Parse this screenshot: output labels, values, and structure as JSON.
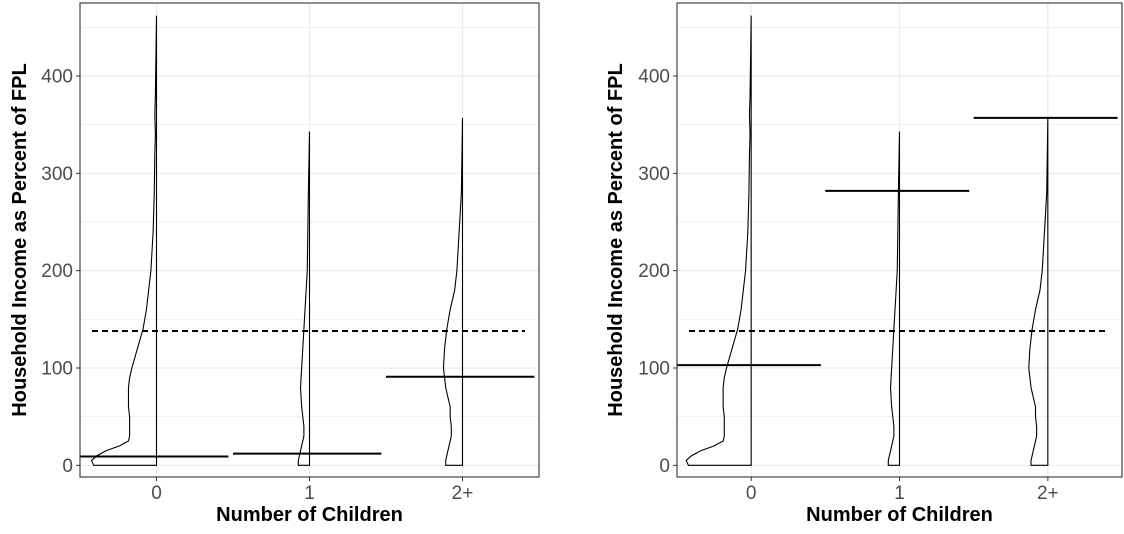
{
  "chart_data": [
    {
      "type": "violin",
      "xlabel": "Number of Children",
      "ylabel": "Household Income as Percent of FPL",
      "categories": [
        "0",
        "1",
        "2+"
      ],
      "ylim": [
        -12,
        475
      ],
      "yticks": [
        0,
        100,
        200,
        300,
        400
      ],
      "grid": true,
      "reference_line": {
        "y": 138,
        "style": "dashed"
      },
      "groups": [
        {
          "category": "0",
          "max": 462,
          "mean_line": 9,
          "density": [
            [
              0,
              0.56
            ],
            [
              5,
              0.58
            ],
            [
              10,
              0.53
            ],
            [
              15,
              0.45
            ],
            [
              20,
              0.33
            ],
            [
              25,
              0.25
            ],
            [
              30,
              0.24
            ],
            [
              40,
              0.24
            ],
            [
              50,
              0.24
            ],
            [
              60,
              0.25
            ],
            [
              70,
              0.25
            ],
            [
              80,
              0.25
            ],
            [
              90,
              0.24
            ],
            [
              100,
              0.22
            ],
            [
              120,
              0.17
            ],
            [
              140,
              0.12
            ],
            [
              160,
              0.09
            ],
            [
              180,
              0.07
            ],
            [
              200,
              0.05
            ],
            [
              240,
              0.03
            ],
            [
              280,
              0.02
            ],
            [
              320,
              0.015
            ],
            [
              340,
              0.01
            ],
            [
              360,
              0.015
            ],
            [
              380,
              0.01
            ],
            [
              420,
              0.005
            ],
            [
              462,
              0
            ]
          ]
        },
        {
          "category": "1",
          "max": 343,
          "mean_line": 12,
          "density": [
            [
              0,
              0.1
            ],
            [
              5,
              0.1
            ],
            [
              10,
              0.09
            ],
            [
              20,
              0.07
            ],
            [
              30,
              0.05
            ],
            [
              40,
              0.05
            ],
            [
              50,
              0.06
            ],
            [
              60,
              0.07
            ],
            [
              80,
              0.08
            ],
            [
              100,
              0.07
            ],
            [
              120,
              0.06
            ],
            [
              140,
              0.05
            ],
            [
              160,
              0.04
            ],
            [
              180,
              0.03
            ],
            [
              200,
              0.02
            ],
            [
              240,
              0.015
            ],
            [
              280,
              0.01
            ],
            [
              343,
              0
            ]
          ]
        },
        {
          "category": "2+",
          "max": 357,
          "mean_line": 91,
          "density": [
            [
              0,
              0.15
            ],
            [
              5,
              0.15
            ],
            [
              10,
              0.14
            ],
            [
              20,
              0.12
            ],
            [
              30,
              0.1
            ],
            [
              40,
              0.1
            ],
            [
              50,
              0.11
            ],
            [
              60,
              0.11
            ],
            [
              80,
              0.15
            ],
            [
              100,
              0.17
            ],
            [
              120,
              0.16
            ],
            [
              140,
              0.14
            ],
            [
              160,
              0.11
            ],
            [
              180,
              0.07
            ],
            [
              200,
              0.05
            ],
            [
              240,
              0.03
            ],
            [
              280,
              0.01
            ],
            [
              357,
              0
            ]
          ]
        }
      ]
    },
    {
      "type": "violin",
      "xlabel": "Number of Children",
      "ylabel": "Household Income as Percent of FPL",
      "categories": [
        "0",
        "1",
        "2+"
      ],
      "ylim": [
        -12,
        475
      ],
      "yticks": [
        0,
        100,
        200,
        300,
        400
      ],
      "grid": true,
      "reference_line": {
        "y": 138,
        "style": "dashed"
      },
      "groups": [
        {
          "category": "0",
          "max": 462,
          "mean_line": 103,
          "density": [
            [
              0,
              0.56
            ],
            [
              5,
              0.58
            ],
            [
              10,
              0.53
            ],
            [
              15,
              0.45
            ],
            [
              20,
              0.33
            ],
            [
              25,
              0.25
            ],
            [
              30,
              0.24
            ],
            [
              40,
              0.24
            ],
            [
              50,
              0.24
            ],
            [
              60,
              0.25
            ],
            [
              70,
              0.25
            ],
            [
              80,
              0.25
            ],
            [
              90,
              0.24
            ],
            [
              100,
              0.22
            ],
            [
              120,
              0.17
            ],
            [
              140,
              0.12
            ],
            [
              160,
              0.09
            ],
            [
              180,
              0.07
            ],
            [
              200,
              0.05
            ],
            [
              240,
              0.03
            ],
            [
              280,
              0.02
            ],
            [
              320,
              0.015
            ],
            [
              340,
              0.01
            ],
            [
              360,
              0.015
            ],
            [
              380,
              0.01
            ],
            [
              420,
              0.005
            ],
            [
              462,
              0
            ]
          ]
        },
        {
          "category": "1",
          "max": 343,
          "mean_line": 282,
          "density": [
            [
              0,
              0.1
            ],
            [
              5,
              0.1
            ],
            [
              10,
              0.09
            ],
            [
              20,
              0.07
            ],
            [
              30,
              0.05
            ],
            [
              40,
              0.05
            ],
            [
              50,
              0.06
            ],
            [
              60,
              0.07
            ],
            [
              80,
              0.08
            ],
            [
              100,
              0.07
            ],
            [
              120,
              0.06
            ],
            [
              140,
              0.05
            ],
            [
              160,
              0.04
            ],
            [
              180,
              0.03
            ],
            [
              200,
              0.02
            ],
            [
              240,
              0.015
            ],
            [
              280,
              0.01
            ],
            [
              343,
              0
            ]
          ]
        },
        {
          "category": "2+",
          "max": 357,
          "mean_line": 357,
          "density": [
            [
              0,
              0.15
            ],
            [
              5,
              0.15
            ],
            [
              10,
              0.14
            ],
            [
              20,
              0.12
            ],
            [
              30,
              0.1
            ],
            [
              40,
              0.1
            ],
            [
              50,
              0.11
            ],
            [
              60,
              0.11
            ],
            [
              80,
              0.15
            ],
            [
              100,
              0.17
            ],
            [
              120,
              0.16
            ],
            [
              140,
              0.14
            ],
            [
              160,
              0.11
            ],
            [
              180,
              0.07
            ],
            [
              200,
              0.05
            ],
            [
              240,
              0.03
            ],
            [
              280,
              0.01
            ],
            [
              357,
              0
            ]
          ]
        }
      ]
    }
  ]
}
